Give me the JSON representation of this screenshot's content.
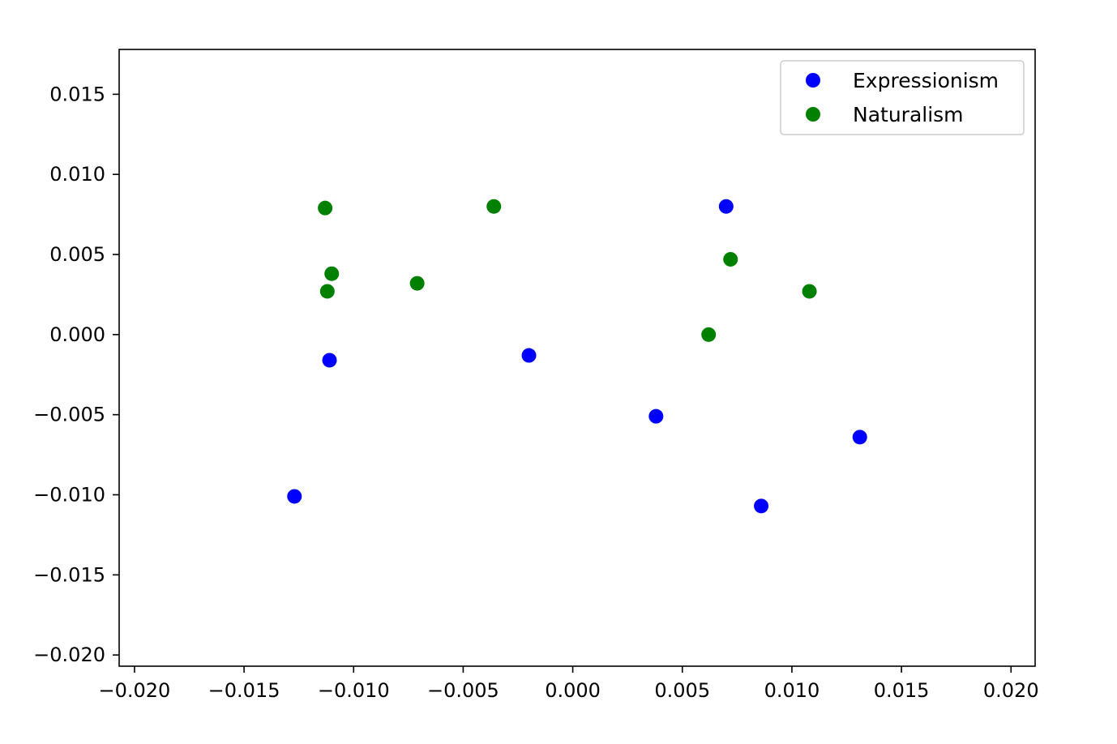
{
  "chart_data": {
    "type": "scatter",
    "title": "",
    "xlabel": "",
    "ylabel": "",
    "xlim": [
      -0.0207,
      0.0211
    ],
    "ylim": [
      -0.0207,
      0.0178
    ],
    "xticks": [
      -0.02,
      -0.015,
      -0.01,
      -0.005,
      0.0,
      0.005,
      0.01,
      0.015,
      0.02
    ],
    "xtick_labels": [
      "−0.020",
      "−0.015",
      "−0.010",
      "−0.005",
      "0.000",
      "0.005",
      "0.010",
      "0.015",
      "0.020"
    ],
    "yticks": [
      -0.02,
      -0.015,
      -0.01,
      -0.005,
      0.0,
      0.005,
      0.01,
      0.015
    ],
    "ytick_labels": [
      "−0.020",
      "−0.015",
      "−0.010",
      "−0.005",
      "0.000",
      "0.005",
      "0.010",
      "0.015"
    ],
    "grid": false,
    "legend_position": "top-right",
    "series": [
      {
        "name": "Expressionism",
        "color": "#0000ff",
        "points": [
          {
            "x": -0.0127,
            "y": -0.0101
          },
          {
            "x": -0.0111,
            "y": -0.0016
          },
          {
            "x": -0.002,
            "y": -0.0013
          },
          {
            "x": 0.0038,
            "y": -0.0051
          },
          {
            "x": 0.007,
            "y": 0.008
          },
          {
            "x": 0.0086,
            "y": -0.0107
          },
          {
            "x": 0.0131,
            "y": -0.0064
          }
        ]
      },
      {
        "name": "Naturalism",
        "color": "#008000",
        "points": [
          {
            "x": -0.0113,
            "y": 0.0079
          },
          {
            "x": -0.011,
            "y": 0.0038
          },
          {
            "x": -0.0112,
            "y": 0.0027
          },
          {
            "x": -0.0071,
            "y": 0.0032
          },
          {
            "x": -0.0036,
            "y": 0.008
          },
          {
            "x": 0.0062,
            "y": 0.0
          },
          {
            "x": 0.0072,
            "y": 0.0047
          },
          {
            "x": 0.0108,
            "y": 0.0027
          }
        ]
      }
    ]
  }
}
